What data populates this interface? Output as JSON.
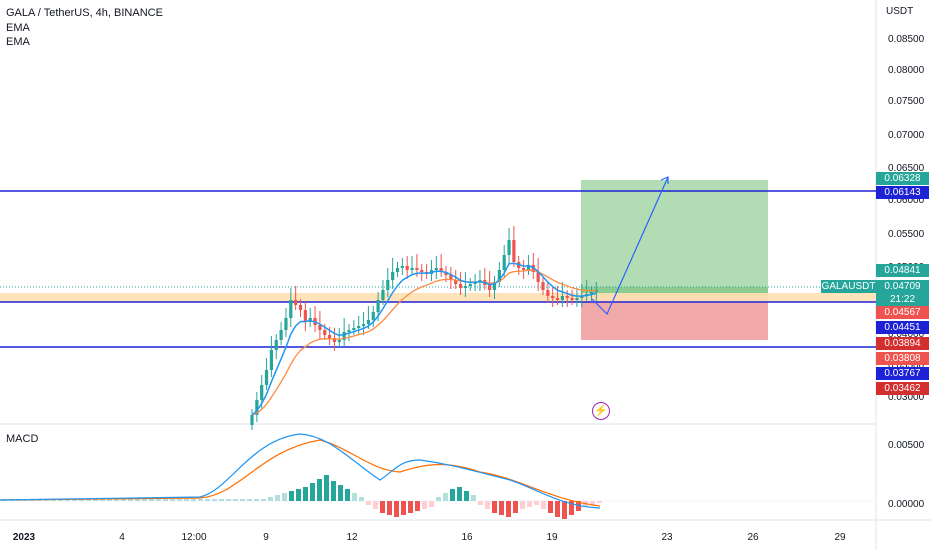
{
  "header": {
    "symbol_line": "GALA / TetherUS, 4h, BINANCE",
    "indicators": [
      "EMA",
      "EMA"
    ]
  },
  "price_axis": {
    "currency": "USDT",
    "ticks": [
      "0.08500",
      "0.08000",
      "0.07500",
      "0.07000",
      "0.06500",
      "0.06000",
      "0.05500",
      "0.05000",
      "0.04500",
      "0.04000",
      "0.03500",
      "0.03000"
    ]
  },
  "macd_panel": {
    "label": "MACD",
    "ticks": [
      "0.00500",
      "0.00000"
    ]
  },
  "time_axis": {
    "labels": [
      "2023",
      "4",
      "12:00",
      "9",
      "12",
      "16",
      "19",
      "23",
      "26",
      "29"
    ]
  },
  "price_labels": [
    {
      "text": "0.06328",
      "color": "#26a69a"
    },
    {
      "text": "0.06143",
      "color": "#1e22d6"
    },
    {
      "text": "0.04841",
      "color": "#26a69a"
    },
    {
      "text": "0.04709",
      "color": "#26a69a"
    },
    {
      "text": "21:22",
      "color": "#26a69a"
    },
    {
      "text": "0.04567",
      "color": "#ef5350"
    },
    {
      "text": "0.04451",
      "color": "#1e22d6"
    },
    {
      "text": "0.03894",
      "color": "#d32f2f"
    },
    {
      "text": "0.03808",
      "color": "#ef5350"
    },
    {
      "text": "0.03767",
      "color": "#1e22d6"
    },
    {
      "text": "0.03462",
      "color": "#d32f2f"
    }
  ],
  "symbol_badge": "GALAUSDT",
  "colors": {
    "up": "#26a69a",
    "down": "#ef5350",
    "ema_fast": "#2196f3",
    "ema_slow": "#ff8a3d",
    "hline": "#1e22d6",
    "target_zone": "#a5d6a7",
    "stop_zone": "#ef9a9a"
  },
  "lightning_icon": "lightning-icon"
}
